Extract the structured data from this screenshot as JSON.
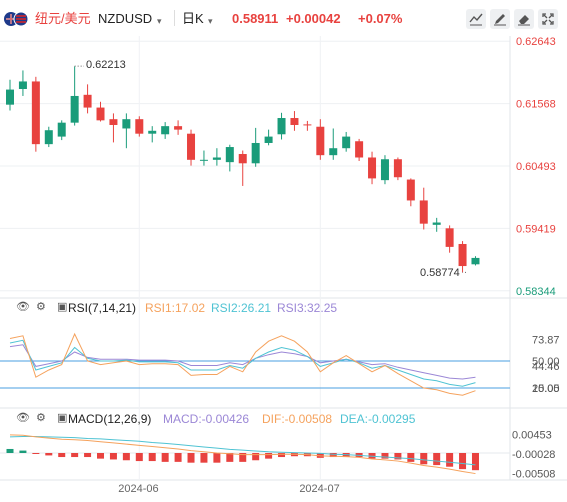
{
  "header": {
    "pair_link": "纽元/美元",
    "symbol": "NZDUSD",
    "symbol_caret": "▾",
    "period": "日K",
    "period_caret": "▾",
    "last_price": "0.58911",
    "change": "+0.00042",
    "change_pct": "+0.07%",
    "colors": {
      "up": "#e8423f",
      "down": "#1a9c7a"
    }
  },
  "price_panel": {
    "y_ticks": [
      "0.62643",
      "0.61568",
      "0.60493",
      "0.59419",
      "0.58344"
    ],
    "high_label": "0.62213",
    "low_label": "0.58774"
  },
  "rsi": {
    "title": "RSI(7,14,21)",
    "rsi1": "RSI1:17.02",
    "rsi2": "RSI2:26.21",
    "rsi3": "RSI3:32.25",
    "y_ticks": [
      "73.87",
      "50.00",
      "44.46",
      "20.00",
      "15.05"
    ],
    "colors": {
      "rsi1": "#f5a25d",
      "rsi2": "#4fc3d3",
      "rsi3": "#9b87d6"
    }
  },
  "macd": {
    "title": "MACD(12,26,9)",
    "macd": "MACD:-0.00426",
    "dif": "DIF:-0.00508",
    "dea": "DEA:-0.00295",
    "y_ticks": [
      "0.00453",
      "-0.00028",
      "-0.00508"
    ],
    "colors": {
      "macd": "#9b87d6",
      "dif": "#f5a25d",
      "dea": "#4fc3d3"
    }
  },
  "x_axis": {
    "labels": [
      "2024-06",
      "2024-07"
    ]
  },
  "chart_data": {
    "type": "candlestick",
    "candles": [
      {
        "o": 0.6155,
        "h": 0.6198,
        "l": 0.6145,
        "c": 0.6181
      },
      {
        "o": 0.6182,
        "h": 0.6214,
        "l": 0.617,
        "c": 0.6195
      },
      {
        "o": 0.6195,
        "h": 0.6203,
        "l": 0.6074,
        "c": 0.6087
      },
      {
        "o": 0.6087,
        "h": 0.6117,
        "l": 0.6082,
        "c": 0.6111
      },
      {
        "o": 0.61,
        "h": 0.6128,
        "l": 0.6094,
        "c": 0.6124
      },
      {
        "o": 0.6124,
        "h": 0.6221,
        "l": 0.6119,
        "c": 0.617
      },
      {
        "o": 0.6172,
        "h": 0.619,
        "l": 0.614,
        "c": 0.615
      },
      {
        "o": 0.615,
        "h": 0.616,
        "l": 0.6126,
        "c": 0.6128
      },
      {
        "o": 0.613,
        "h": 0.614,
        "l": 0.609,
        "c": 0.612
      },
      {
        "o": 0.6114,
        "h": 0.614,
        "l": 0.608,
        "c": 0.613
      },
      {
        "o": 0.613,
        "h": 0.6135,
        "l": 0.61,
        "c": 0.6105
      },
      {
        "o": 0.6105,
        "h": 0.6118,
        "l": 0.609,
        "c": 0.611
      },
      {
        "o": 0.6104,
        "h": 0.6125,
        "l": 0.6096,
        "c": 0.6118
      },
      {
        "o": 0.6118,
        "h": 0.6128,
        "l": 0.6103,
        "c": 0.6112
      },
      {
        "o": 0.6105,
        "h": 0.6112,
        "l": 0.605,
        "c": 0.606
      },
      {
        "o": 0.606,
        "h": 0.6076,
        "l": 0.605,
        "c": 0.606
      },
      {
        "o": 0.606,
        "h": 0.608,
        "l": 0.605,
        "c": 0.6064
      },
      {
        "o": 0.6056,
        "h": 0.6086,
        "l": 0.604,
        "c": 0.6082
      },
      {
        "o": 0.607,
        "h": 0.6076,
        "l": 0.6015,
        "c": 0.6054
      },
      {
        "o": 0.6054,
        "h": 0.6115,
        "l": 0.6048,
        "c": 0.6089
      },
      {
        "o": 0.6089,
        "h": 0.6112,
        "l": 0.6085,
        "c": 0.61
      },
      {
        "o": 0.6104,
        "h": 0.6141,
        "l": 0.6095,
        "c": 0.6132
      },
      {
        "o": 0.6132,
        "h": 0.6144,
        "l": 0.611,
        "c": 0.612
      },
      {
        "o": 0.6121,
        "h": 0.6127,
        "l": 0.611,
        "c": 0.612
      },
      {
        "o": 0.6117,
        "h": 0.613,
        "l": 0.606,
        "c": 0.6068
      },
      {
        "o": 0.6068,
        "h": 0.6114,
        "l": 0.606,
        "c": 0.608
      },
      {
        "o": 0.608,
        "h": 0.6108,
        "l": 0.6074,
        "c": 0.61
      },
      {
        "o": 0.6092,
        "h": 0.6096,
        "l": 0.6058,
        "c": 0.6064
      },
      {
        "o": 0.6064,
        "h": 0.6074,
        "l": 0.6018,
        "c": 0.6028
      },
      {
        "o": 0.6025,
        "h": 0.6068,
        "l": 0.6018,
        "c": 0.6061
      },
      {
        "o": 0.6061,
        "h": 0.6064,
        "l": 0.6025,
        "c": 0.603
      },
      {
        "o": 0.6026,
        "h": 0.6028,
        "l": 0.598,
        "c": 0.599
      },
      {
        "o": 0.599,
        "h": 0.6012,
        "l": 0.594,
        "c": 0.595
      },
      {
        "o": 0.5948,
        "h": 0.596,
        "l": 0.5936,
        "c": 0.5952
      },
      {
        "o": 0.5942,
        "h": 0.5947,
        "l": 0.59,
        "c": 0.591
      },
      {
        "o": 0.5915,
        "h": 0.592,
        "l": 0.5866,
        "c": 0.5877
      },
      {
        "o": 0.588,
        "h": 0.5894,
        "l": 0.5878,
        "c": 0.5891
      }
    ],
    "y_range": [
      0.58254,
      0.62733
    ],
    "rsi_series": {
      "rsi1": [
        75,
        78,
        32,
        40,
        46,
        80,
        50,
        46,
        48,
        50,
        46,
        47,
        47,
        46,
        34,
        35,
        35,
        44,
        38,
        60,
        72,
        78,
        72,
        60,
        38,
        48,
        56,
        47,
        38,
        45,
        36,
        28,
        20,
        18,
        14,
        12,
        17
      ],
      "rsi2": [
        70,
        73,
        40,
        44,
        48,
        65,
        53,
        50,
        50,
        51,
        49,
        49,
        49,
        48,
        40,
        40,
        40,
        45,
        42,
        53,
        60,
        65,
        62,
        55,
        44,
        48,
        52,
        48,
        42,
        45,
        40,
        35,
        30,
        28,
        24,
        22,
        26
      ],
      "rsi3": [
        66,
        68,
        44,
        47,
        50,
        60,
        54,
        52,
        52,
        52,
        51,
        51,
        51,
        50,
        45,
        45,
        45,
        48,
        46,
        53,
        57,
        60,
        58,
        55,
        48,
        50,
        52,
        49,
        46,
        47,
        43,
        40,
        37,
        34,
        31,
        30,
        32
      ],
      "range": [
        0,
        100
      ]
    },
    "macd_series": {
      "dif": [
        0.0045,
        0.0044,
        0.004,
        0.0037,
        0.0034,
        0.0033,
        0.0031,
        0.0028,
        0.0025,
        0.0022,
        0.0019,
        0.0016,
        0.0013,
        0.001,
        0.0006,
        0.0003,
        0.0,
        -0.0002,
        -0.0004,
        -0.0004,
        -0.0004,
        -0.0003,
        -0.0003,
        -0.0004,
        -0.0007,
        -0.0008,
        -0.0009,
        -0.0011,
        -0.0015,
        -0.0017,
        -0.002,
        -0.0025,
        -0.0031,
        -0.0035,
        -0.004,
        -0.0046,
        -0.0051
      ],
      "dea": [
        0.004,
        0.0041,
        0.0041,
        0.004,
        0.0039,
        0.0038,
        0.0036,
        0.0035,
        0.0033,
        0.0031,
        0.0029,
        0.0026,
        0.0024,
        0.0021,
        0.0018,
        0.0015,
        0.0012,
        0.0009,
        0.0007,
        0.0005,
        0.0003,
        0.0002,
        0.0001,
        0.0,
        -0.0001,
        -0.0003,
        -0.0004,
        -0.0006,
        -0.0008,
        -0.001,
        -0.0012,
        -0.0014,
        -0.0017,
        -0.002,
        -0.0023,
        -0.0026,
        -0.00295
      ],
      "hist": [
        0.001,
        0.0006,
        -0.0002,
        -0.0006,
        -0.001,
        -0.001,
        -0.001,
        -0.0014,
        -0.0016,
        -0.0018,
        -0.002,
        -0.002,
        -0.0022,
        -0.0022,
        -0.0024,
        -0.0024,
        -0.0024,
        -0.0022,
        -0.0022,
        -0.0018,
        -0.0014,
        -0.001,
        -0.0008,
        -0.0008,
        -0.0012,
        -0.001,
        -0.001,
        -0.001,
        -0.0014,
        -0.0014,
        -0.0016,
        -0.0022,
        -0.0028,
        -0.003,
        -0.0034,
        -0.004,
        -0.00426
      ],
      "range": [
        -0.0062,
        0.0062
      ]
    },
    "x_label_index": [
      10,
      24
    ]
  }
}
